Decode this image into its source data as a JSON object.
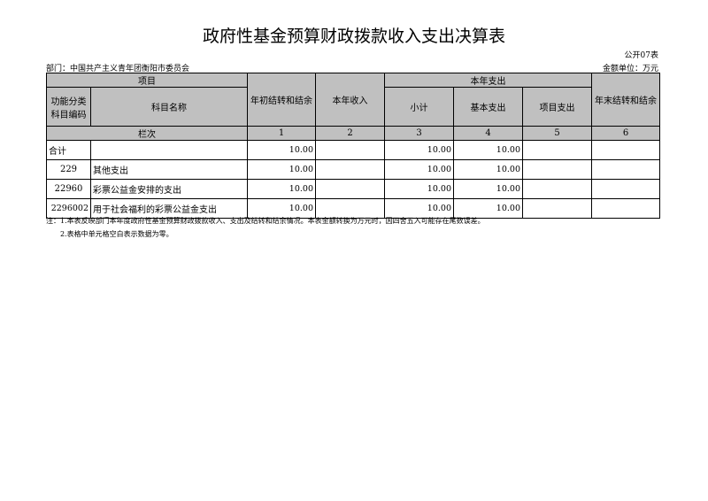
{
  "title": "政府性基金预算财政拨款收入支出决算表",
  "table_code": "公开07表",
  "department": "部门：中国共产主义青年团衡阳市委员会",
  "unit": "金额单位：万元",
  "headers": {
    "item": "项目",
    "code": "功能分类科目编码",
    "name": "科目名称",
    "begin": "年初结转和结余",
    "income": "本年收入",
    "expense": "本年支出",
    "subtotal": "小计",
    "basic": "基本支出",
    "project": "项目支出",
    "end": "年末结转和结余",
    "col_index": "栏次",
    "cols": [
      "1",
      "2",
      "3",
      "4",
      "5",
      "6"
    ]
  },
  "rows": [
    {
      "code": "合计",
      "name": "",
      "begin": "10.00",
      "income": "",
      "subtotal": "10.00",
      "basic": "10.00",
      "project": "",
      "end": ""
    },
    {
      "code": "229",
      "name": "其他支出",
      "begin": "10.00",
      "income": "",
      "subtotal": "10.00",
      "basic": "10.00",
      "project": "",
      "end": ""
    },
    {
      "code": "22960",
      "name": "彩票公益金安排的支出",
      "begin": "10.00",
      "income": "",
      "subtotal": "10.00",
      "basic": "10.00",
      "project": "",
      "end": ""
    },
    {
      "code": "2296002",
      "name": "用于社会福利的彩票公益金支出",
      "begin": "10.00",
      "income": "",
      "subtotal": "10.00",
      "basic": "10.00",
      "project": "",
      "end": ""
    }
  ],
  "notes": [
    "注：1.本表反映部门本年度政府性基金预算财政拨款收入、支出及结转和结余情况。本表金额转换为万元时，因四舍五入可能存在尾数误差。",
    "2.表格中单元格空白表示数据为零。"
  ]
}
